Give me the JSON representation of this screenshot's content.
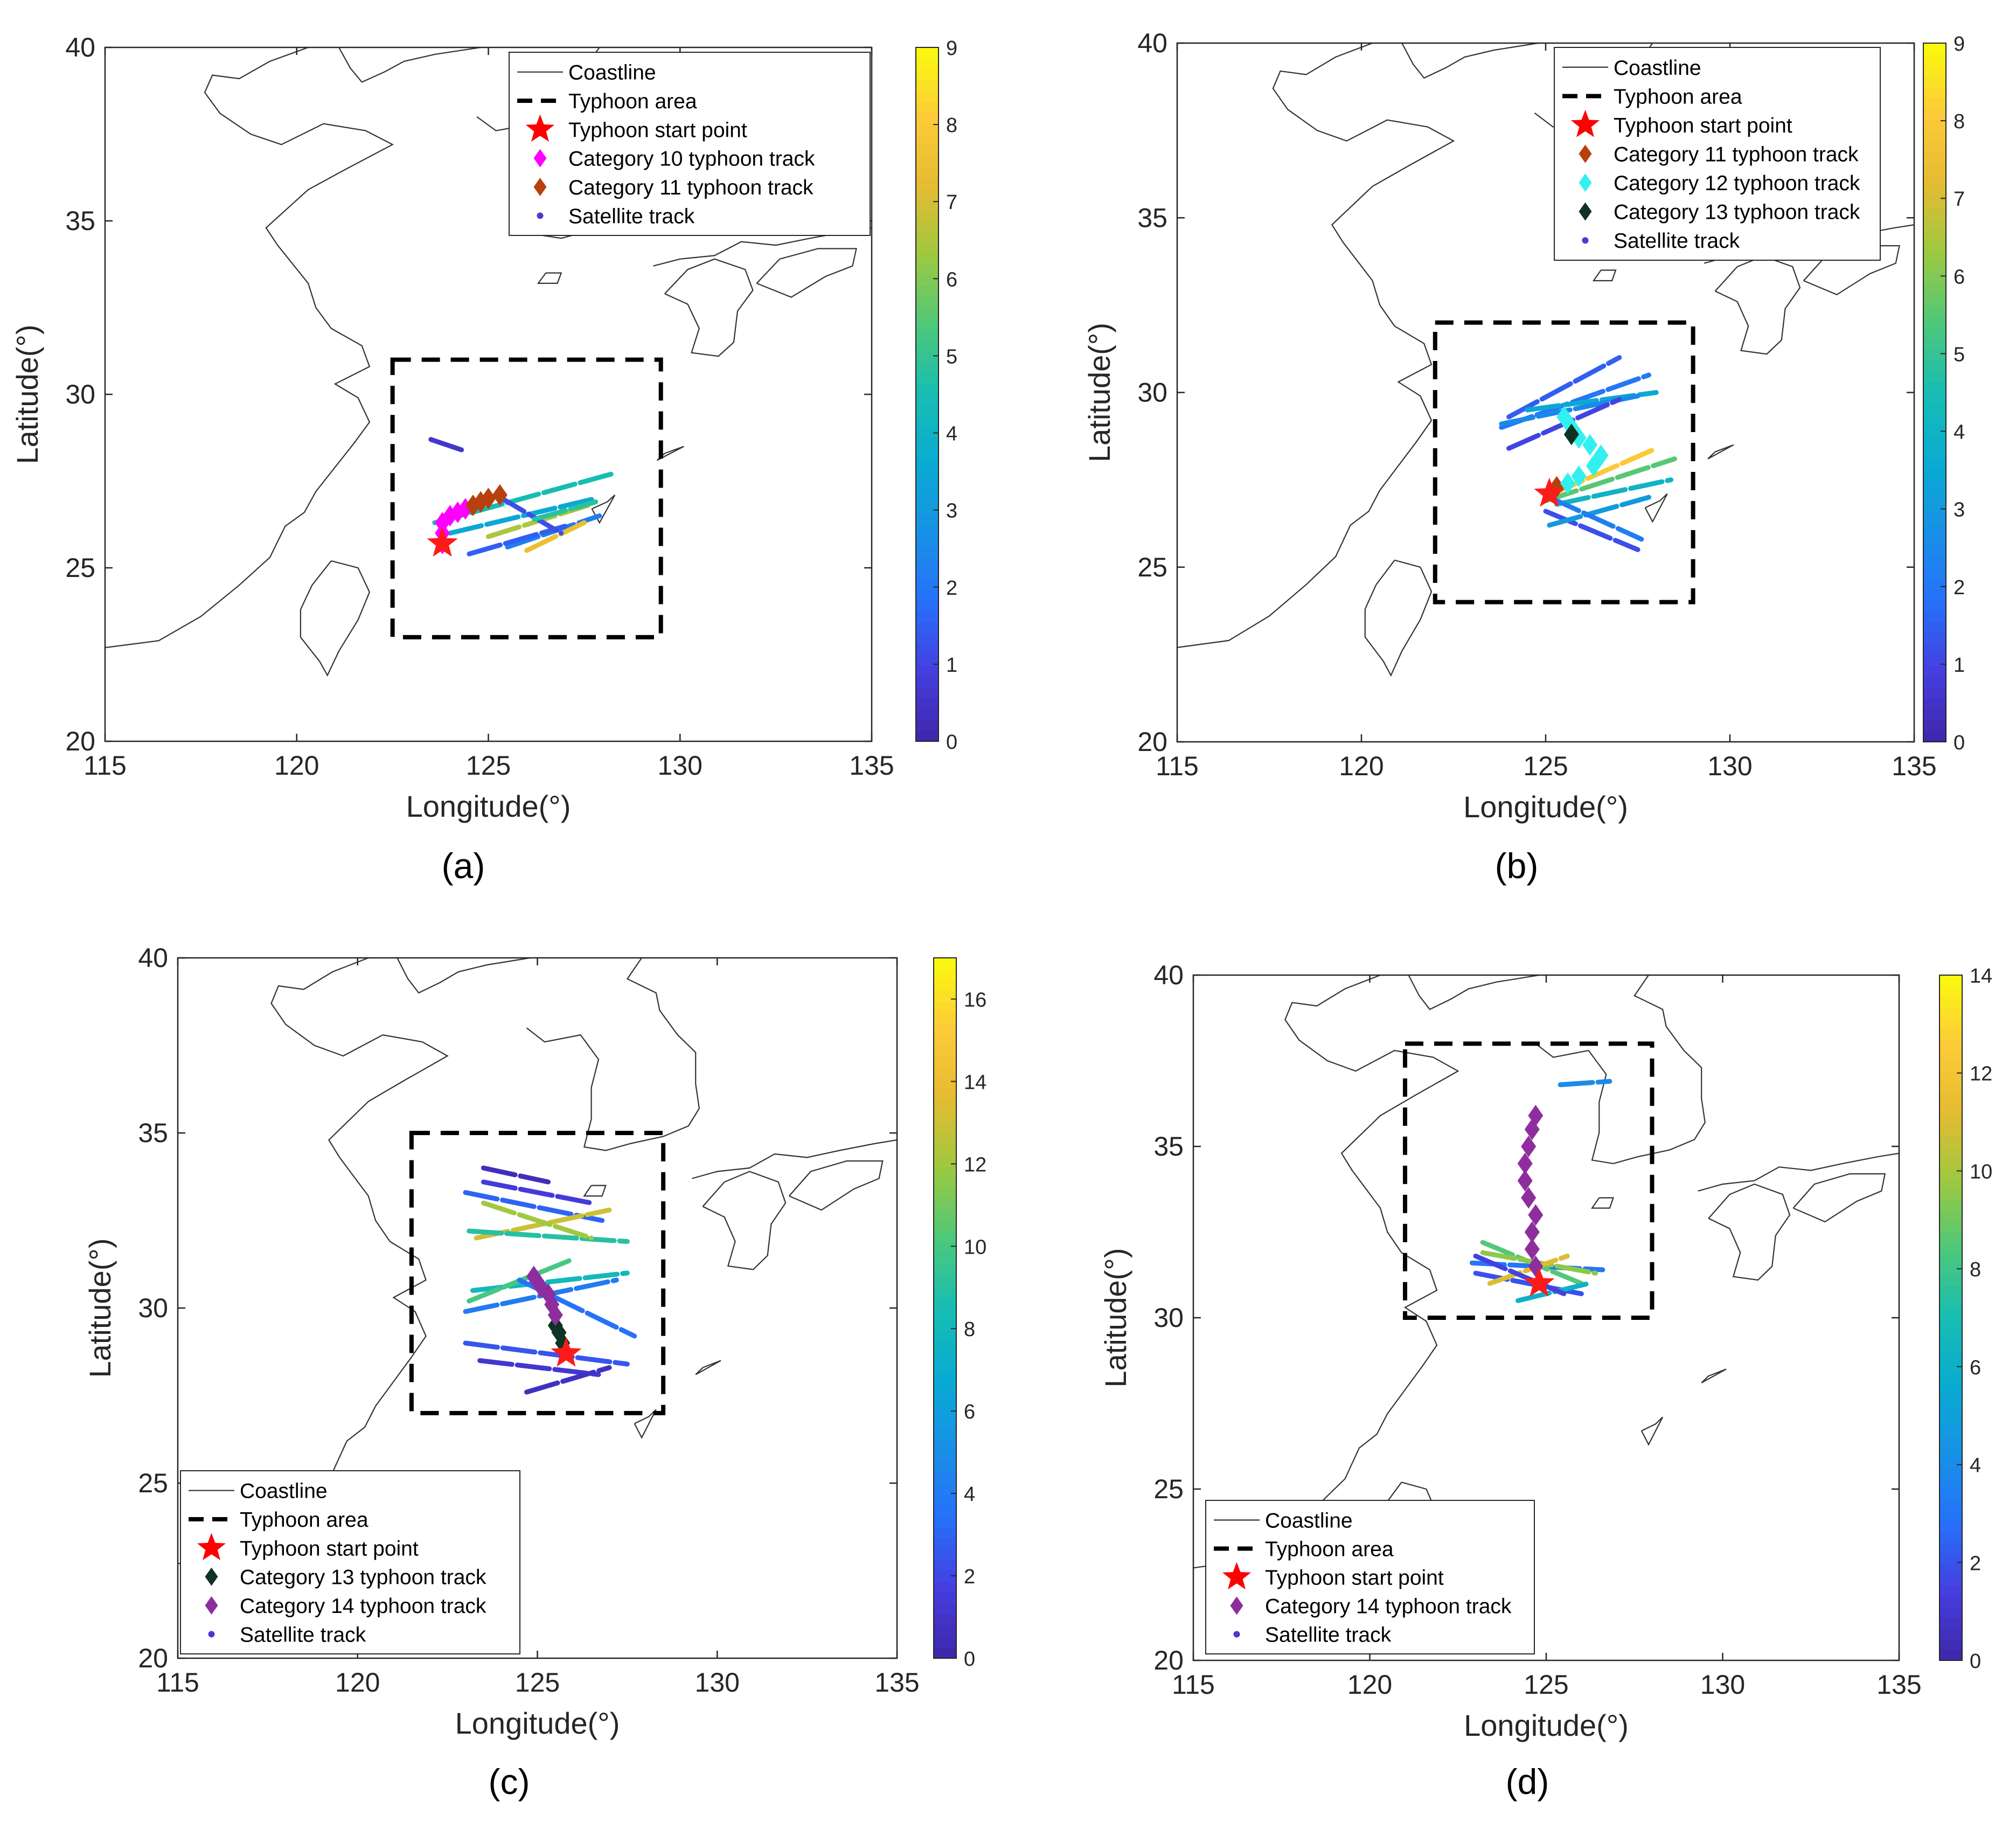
{
  "figure": {
    "description_labels": [
      "(a)",
      "(b)",
      "(c)",
      "(d)"
    ]
  },
  "chart_data": [
    {
      "type": "scatter",
      "caption": "(a)",
      "xlabel": "Longitude(°)",
      "ylabel": "Latitude(°)",
      "xlim": [
        115,
        135
      ],
      "ylim": [
        20,
        40
      ],
      "xticks": [
        "115",
        "120",
        "125",
        "130",
        "135"
      ],
      "yticks": [
        "20",
        "25",
        "30",
        "35",
        "40"
      ],
      "colorbar": {
        "min": 0,
        "max": 9,
        "ticks": [
          "0",
          "1",
          "2",
          "3",
          "4",
          "5",
          "6",
          "7",
          "8",
          "9"
        ]
      },
      "legend_position": "top-right",
      "legend": [
        {
          "label": "Coastline",
          "kind": "line"
        },
        {
          "label": "Typhoon area",
          "kind": "dash"
        },
        {
          "label": "Typhoon start point",
          "kind": "star",
          "color": "#ff0000"
        },
        {
          "label": "Category 10 typhoon track",
          "kind": "diamond",
          "color": "#ff00ff"
        },
        {
          "label": "Category 11 typhoon track",
          "kind": "diamond",
          "color": "#b8400f"
        },
        {
          "label": "Satellite track",
          "kind": "dot",
          "color": "#4a3ad0"
        }
      ],
      "typhoon_area": {
        "lon": [
          122.5,
          129.5
        ],
        "lat": [
          23,
          31
        ]
      },
      "start_point": [
        123.8,
        25.7
      ],
      "tracks": [
        {
          "category": "Category 10 typhoon track",
          "color": "#ff00ff",
          "points": [
            [
              123.8,
              25.7
            ],
            [
              123.8,
              26.0
            ],
            [
              123.8,
              26.3
            ],
            [
              124.0,
              26.5
            ],
            [
              124.2,
              26.6
            ],
            [
              124.4,
              26.7
            ]
          ]
        },
        {
          "category": "Category 11 typhoon track",
          "color": "#b8400f",
          "points": [
            [
              124.6,
              26.8
            ],
            [
              124.8,
              26.9
            ],
            [
              125.0,
              27.0
            ],
            [
              125.3,
              27.1
            ]
          ]
        }
      ],
      "satellite_tracks": [
        {
          "start": [
            123.5,
            28.7
          ],
          "end": [
            124.3,
            28.4
          ],
          "value": 0.6
        },
        {
          "start": [
            123.6,
            26.3
          ],
          "end": [
            128.2,
            27.7
          ],
          "value": 4.5
        },
        {
          "start": [
            124.0,
            26.0
          ],
          "end": [
            127.8,
            27.0
          ],
          "value": 3.5
        },
        {
          "start": [
            125.0,
            25.9
          ],
          "end": [
            127.6,
            26.8
          ],
          "value": 6.5
        },
        {
          "start": [
            125.5,
            25.6
          ],
          "end": [
            127.9,
            26.5
          ],
          "value": 2.2
        },
        {
          "start": [
            126.0,
            25.5
          ],
          "end": [
            127.5,
            26.3
          ],
          "value": 7.5
        },
        {
          "start": [
            124.5,
            25.4
          ],
          "end": [
            127.0,
            26.2
          ],
          "value": 1.5
        },
        {
          "start": [
            125.2,
            27.1
          ],
          "end": [
            126.9,
            26.0
          ],
          "value": 1.2
        },
        {
          "start": [
            126.2,
            26.4
          ],
          "end": [
            127.8,
            26.9
          ],
          "value": 4.8
        }
      ]
    },
    {
      "type": "scatter",
      "caption": "(b)",
      "xlabel": "Longitude(°)",
      "ylabel": "Latitude(°)",
      "xlim": [
        115,
        135
      ],
      "ylim": [
        20,
        40
      ],
      "xticks": [
        "115",
        "120",
        "125",
        "130",
        "135"
      ],
      "yticks": [
        "20",
        "25",
        "30",
        "35",
        "40"
      ],
      "colorbar": {
        "min": 0,
        "max": 9,
        "ticks": [
          "0",
          "1",
          "2",
          "3",
          "4",
          "5",
          "6",
          "7",
          "8",
          "9"
        ]
      },
      "legend_position": "top-right",
      "legend": [
        {
          "label": "Coastline",
          "kind": "line"
        },
        {
          "label": "Typhoon area",
          "kind": "dash"
        },
        {
          "label": "Typhoon start point",
          "kind": "star",
          "color": "#ff0000"
        },
        {
          "label": "Category 11 typhoon track",
          "kind": "diamond",
          "color": "#b8400f"
        },
        {
          "label": "Category 12 typhoon track",
          "kind": "diamond",
          "color": "#33f0f0"
        },
        {
          "label": "Category 13 typhoon track",
          "kind": "diamond",
          "color": "#0f3322"
        },
        {
          "label": "Satellite track",
          "kind": "dot",
          "color": "#4a3ad0"
        }
      ],
      "typhoon_area": {
        "lon": [
          122,
          129
        ],
        "lat": [
          24,
          32
        ]
      },
      "start_point": [
        125.1,
        27.1
      ],
      "tracks": [
        {
          "category": "Category 11 typhoon track",
          "color": "#b8400f",
          "points": [
            [
              125.3,
              27.3
            ]
          ]
        },
        {
          "category": "Category 12 typhoon track",
          "color": "#33f0f0",
          "points": [
            [
              125.6,
              27.4
            ],
            [
              125.9,
              27.6
            ],
            [
              126.3,
              27.9
            ],
            [
              126.5,
              28.2
            ],
            [
              126.2,
              28.5
            ],
            [
              125.9,
              28.7
            ],
            [
              125.7,
              29.0
            ],
            [
              125.5,
              29.3
            ]
          ]
        },
        {
          "category": "Category 13 typhoon track",
          "color": "#0f3322",
          "points": [
            [
              125.7,
              28.8
            ]
          ]
        }
      ],
      "satellite_tracks": [
        {
          "start": [
            124.0,
            29.3
          ],
          "end": [
            127.0,
            31.0
          ],
          "value": 1.5
        },
        {
          "start": [
            123.8,
            29.0
          ],
          "end": [
            127.8,
            30.5
          ],
          "value": 2.0
        },
        {
          "start": [
            124.5,
            29.5
          ],
          "end": [
            128.0,
            30.0
          ],
          "value": 3.5
        },
        {
          "start": [
            123.8,
            29.1
          ],
          "end": [
            127.5,
            29.9
          ],
          "value": 2.5
        },
        {
          "start": [
            124.0,
            28.4
          ],
          "end": [
            127.0,
            29.8
          ],
          "value": 1.0
        },
        {
          "start": [
            125.0,
            26.9
          ],
          "end": [
            128.5,
            28.1
          ],
          "value": 5.5
        },
        {
          "start": [
            125.2,
            27.1
          ],
          "end": [
            128.0,
            28.4
          ],
          "value": 8.0
        },
        {
          "start": [
            125.0,
            26.6
          ],
          "end": [
            127.5,
            25.5
          ],
          "value": 1.2
        },
        {
          "start": [
            125.1,
            26.2
          ],
          "end": [
            127.8,
            27.0
          ],
          "value": 3.0
        },
        {
          "start": [
            125.3,
            26.8
          ],
          "end": [
            128.4,
            27.5
          ],
          "value": 4.0
        },
        {
          "start": [
            125.1,
            27.0
          ],
          "end": [
            127.6,
            25.8
          ],
          "value": 2.2
        }
      ]
    },
    {
      "type": "scatter",
      "caption": "(c)",
      "xlabel": "Longitude(°)",
      "ylabel": "Latitude(°)",
      "xlim": [
        115,
        135
      ],
      "ylim": [
        20,
        40
      ],
      "xticks": [
        "115",
        "120",
        "125",
        "130",
        "135"
      ],
      "yticks": [
        "20",
        "25",
        "30",
        "35",
        "40"
      ],
      "colorbar": {
        "min": 0,
        "max": 17,
        "ticks": [
          "0",
          "2",
          "4",
          "6",
          "8",
          "10",
          "12",
          "14",
          "16"
        ]
      },
      "legend_position": "bottom-left",
      "legend": [
        {
          "label": "Coastline",
          "kind": "line"
        },
        {
          "label": "Typhoon area",
          "kind": "dash"
        },
        {
          "label": "Typhoon start point",
          "kind": "star",
          "color": "#ff0000"
        },
        {
          "label": "Category 13 typhoon track",
          "kind": "diamond",
          "color": "#0f3322"
        },
        {
          "label": "Category 14 typhoon track",
          "kind": "diamond",
          "color": "#8e2e9e"
        },
        {
          "label": "Satellite track",
          "kind": "dot",
          "color": "#4a3ad0"
        }
      ],
      "typhoon_area": {
        "lon": [
          121.5,
          128.5
        ],
        "lat": [
          27,
          35
        ]
      },
      "start_point": [
        125.8,
        28.7
      ],
      "tracks": [
        {
          "category": "Category 13 typhoon track",
          "color": "#0f3322",
          "points": [
            [
              125.7,
              29.0
            ],
            [
              125.6,
              29.3
            ],
            [
              125.5,
              29.5
            ]
          ]
        },
        {
          "category": "Category 14 typhoon track",
          "color": "#8e2e9e",
          "points": [
            [
              125.5,
              29.8
            ],
            [
              125.4,
              30.1
            ],
            [
              125.3,
              30.4
            ],
            [
              125.1,
              30.6
            ],
            [
              124.9,
              30.9
            ]
          ]
        }
      ],
      "satellite_tracks": [
        {
          "start": [
            123.5,
            33.6
          ],
          "end": [
            126.5,
            33.0
          ],
          "value": 1.5
        },
        {
          "start": [
            123.0,
            33.3
          ],
          "end": [
            126.8,
            32.5
          ],
          "value": 3.0
        },
        {
          "start": [
            123.3,
            32.0
          ],
          "end": [
            127.0,
            32.8
          ],
          "value": 13.0
        },
        {
          "start": [
            123.1,
            32.2
          ],
          "end": [
            127.5,
            31.9
          ],
          "value": 9.0
        },
        {
          "start": [
            123.5,
            33.0
          ],
          "end": [
            126.5,
            32.0
          ],
          "value": 12.0
        },
        {
          "start": [
            123.2,
            30.5
          ],
          "end": [
            127.5,
            31.0
          ],
          "value": 8.0
        },
        {
          "start": [
            123.0,
            29.9
          ],
          "end": [
            127.2,
            30.8
          ],
          "value": 4.0
        },
        {
          "start": [
            123.1,
            30.2
          ],
          "end": [
            126.0,
            31.4
          ],
          "value": 10.0
        },
        {
          "start": [
            124.5,
            30.8
          ],
          "end": [
            127.7,
            29.2
          ],
          "value": 3.5
        },
        {
          "start": [
            123.0,
            29.0
          ],
          "end": [
            127.5,
            28.4
          ],
          "value": 2.5
        },
        {
          "start": [
            123.4,
            28.5
          ],
          "end": [
            126.7,
            28.1
          ],
          "value": 1.2
        },
        {
          "start": [
            124.7,
            27.6
          ],
          "end": [
            127.0,
            28.3
          ],
          "value": 0.8
        },
        {
          "start": [
            123.5,
            34.0
          ],
          "end": [
            125.3,
            33.6
          ],
          "value": 0.6
        }
      ]
    },
    {
      "type": "scatter",
      "caption": "(d)",
      "xlabel": "Longitude(°)",
      "ylabel": "Latitude(°)",
      "xlim": [
        115,
        135
      ],
      "ylim": [
        20,
        40
      ],
      "xticks": [
        "115",
        "120",
        "125",
        "130",
        "135"
      ],
      "yticks": [
        "20",
        "25",
        "30",
        "35",
        "40"
      ],
      "colorbar": {
        "min": 0,
        "max": 14,
        "ticks": [
          "0",
          "2",
          "4",
          "6",
          "8",
          "10",
          "12",
          "14"
        ]
      },
      "legend_position": "bottom-left",
      "legend": [
        {
          "label": "Coastline",
          "kind": "line"
        },
        {
          "label": "Typhoon area",
          "kind": "dash"
        },
        {
          "label": "Typhoon start point",
          "kind": "star",
          "color": "#ff0000"
        },
        {
          "label": "Category 14 typhoon track",
          "kind": "diamond",
          "color": "#8e2e9e"
        },
        {
          "label": "Satellite track",
          "kind": "dot",
          "color": "#4a3ad0"
        }
      ],
      "typhoon_area": {
        "lon": [
          121,
          128
        ],
        "lat": [
          30,
          38
        ]
      },
      "start_point": [
        124.8,
        31.0
      ],
      "tracks": [
        {
          "category": "Category 14 typhoon track",
          "color": "#8e2e9e",
          "points": [
            [
              124.7,
              31.5
            ],
            [
              124.6,
              32.0
            ],
            [
              124.6,
              32.5
            ],
            [
              124.7,
              33.0
            ],
            [
              124.5,
              33.5
            ],
            [
              124.4,
              34.0
            ],
            [
              124.4,
              34.5
            ],
            [
              124.5,
              35.0
            ],
            [
              124.6,
              35.5
            ],
            [
              124.7,
              35.9
            ]
          ]
        }
      ],
      "satellite_tracks": [
        {
          "start": [
            125.4,
            36.8
          ],
          "end": [
            126.8,
            36.9
          ],
          "value": 4.0
        },
        {
          "start": [
            122.9,
            31.6
          ],
          "end": [
            126.6,
            31.4
          ],
          "value": 3.0
        },
        {
          "start": [
            123.0,
            31.3
          ],
          "end": [
            126.0,
            30.7
          ],
          "value": 2.0
        },
        {
          "start": [
            123.2,
            32.2
          ],
          "end": [
            126.0,
            31.0
          ],
          "value": 8.5
        },
        {
          "start": [
            123.2,
            31.9
          ],
          "end": [
            126.4,
            31.3
          ],
          "value": 9.5
        },
        {
          "start": [
            123.4,
            31.0
          ],
          "end": [
            125.6,
            31.8
          ],
          "value": 11.0
        },
        {
          "start": [
            124.2,
            30.5
          ],
          "end": [
            126.2,
            31.0
          ],
          "value": 6.0
        },
        {
          "start": [
            123.0,
            31.8
          ],
          "end": [
            125.5,
            30.7
          ],
          "value": 1.5
        }
      ]
    }
  ]
}
